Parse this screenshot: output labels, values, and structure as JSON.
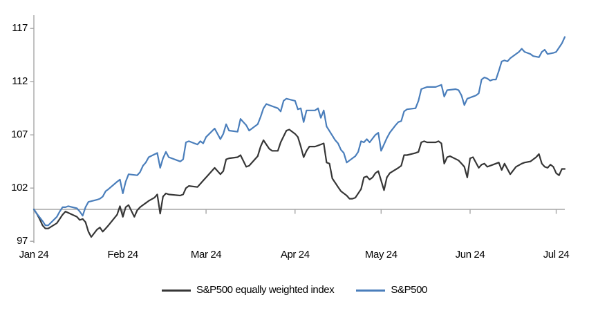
{
  "chart_data": {
    "type": "line",
    "title": "",
    "xlabel": "",
    "ylabel": "",
    "x_axis": {
      "tick_labels": [
        "Jan 24",
        "Feb 24",
        "Mar 24",
        "Apr 24",
        "May 24",
        "Jun 24",
        "Jul 24"
      ],
      "tick_days": [
        0,
        31,
        60,
        91,
        121,
        152,
        182
      ],
      "domain_days": [
        0,
        185
      ]
    },
    "y_axis": {
      "ticks": [
        97,
        102,
        107,
        112,
        117
      ],
      "range": [
        97,
        117
      ],
      "baseline": 100,
      "grid": "baseline-only"
    },
    "legend_position": "bottom",
    "series": [
      {
        "name": "S&P500 equally weighted index",
        "color": "#363636",
        "points": [
          [
            0,
            100.0
          ],
          [
            1,
            99.6
          ],
          [
            2,
            99.1
          ],
          [
            3,
            98.5
          ],
          [
            4,
            98.2
          ],
          [
            5,
            98.2
          ],
          [
            8,
            98.7
          ],
          [
            9,
            99.1
          ],
          [
            10,
            99.5
          ],
          [
            11,
            99.8
          ],
          [
            15,
            99.3
          ],
          [
            16,
            99.0
          ],
          [
            17,
            99.1
          ],
          [
            18,
            98.8
          ],
          [
            19,
            97.9
          ],
          [
            20,
            97.4
          ],
          [
            22,
            98.1
          ],
          [
            23,
            98.3
          ],
          [
            24,
            97.9
          ],
          [
            25,
            98.2
          ],
          [
            26,
            98.5
          ],
          [
            29,
            99.5
          ],
          [
            30,
            100.3
          ],
          [
            31,
            99.3
          ],
          [
            32,
            100.2
          ],
          [
            33,
            100.4
          ],
          [
            35,
            99.3
          ],
          [
            36,
            99.9
          ],
          [
            37,
            100.2
          ],
          [
            38,
            100.4
          ],
          [
            39,
            100.6
          ],
          [
            40,
            100.8
          ],
          [
            42,
            101.1
          ],
          [
            43,
            101.4
          ],
          [
            44,
            99.6
          ],
          [
            45,
            101.2
          ],
          [
            46,
            101.5
          ],
          [
            47,
            101.4
          ],
          [
            51,
            101.3
          ],
          [
            52,
            101.4
          ],
          [
            53,
            102.0
          ],
          [
            54,
            102.2
          ],
          [
            57,
            102.1
          ],
          [
            58,
            102.4
          ],
          [
            59,
            102.7
          ],
          [
            60,
            103.0
          ],
          [
            63,
            103.9
          ],
          [
            65,
            103.3
          ],
          [
            66,
            103.6
          ],
          [
            67,
            104.7
          ],
          [
            68,
            104.8
          ],
          [
            71,
            104.9
          ],
          [
            72,
            105.1
          ],
          [
            74,
            104.0
          ],
          [
            75,
            104.1
          ],
          [
            78,
            105.0
          ],
          [
            79,
            105.9
          ],
          [
            80,
            106.5
          ],
          [
            82,
            105.7
          ],
          [
            83,
            105.5
          ],
          [
            85,
            105.5
          ],
          [
            86,
            106.3
          ],
          [
            88,
            107.4
          ],
          [
            89,
            107.5
          ],
          [
            91,
            107.1
          ],
          [
            92,
            106.8
          ],
          [
            93,
            105.9
          ],
          [
            94,
            104.9
          ],
          [
            95,
            105.5
          ],
          [
            96,
            105.9
          ],
          [
            98,
            105.9
          ],
          [
            99,
            106.0
          ],
          [
            101,
            106.2
          ],
          [
            102,
            104.4
          ],
          [
            103,
            104.3
          ],
          [
            104,
            102.9
          ],
          [
            105,
            102.5
          ],
          [
            106,
            102.1
          ],
          [
            107,
            101.7
          ],
          [
            109,
            101.3
          ],
          [
            110,
            101.0
          ],
          [
            111,
            101.0
          ],
          [
            112,
            101.1
          ],
          [
            114,
            101.9
          ],
          [
            115,
            103.0
          ],
          [
            116,
            103.1
          ],
          [
            117,
            102.8
          ],
          [
            118,
            103.0
          ],
          [
            119,
            103.4
          ],
          [
            120,
            103.6
          ],
          [
            122,
            101.8
          ],
          [
            123,
            103.0
          ],
          [
            124,
            103.4
          ],
          [
            127,
            103.9
          ],
          [
            128,
            104.1
          ],
          [
            129,
            105.1
          ],
          [
            130,
            105.1
          ],
          [
            133,
            105.3
          ],
          [
            134,
            105.4
          ],
          [
            135,
            106.3
          ],
          [
            136,
            106.4
          ],
          [
            137,
            106.3
          ],
          [
            140,
            106.3
          ],
          [
            141,
            106.4
          ],
          [
            142,
            106.2
          ],
          [
            143,
            104.3
          ],
          [
            144,
            104.9
          ],
          [
            145,
            105.0
          ],
          [
            148,
            104.6
          ],
          [
            149,
            104.3
          ],
          [
            150,
            104.0
          ],
          [
            151,
            103.0
          ],
          [
            152,
            104.8
          ],
          [
            153,
            104.9
          ],
          [
            155,
            103.9
          ],
          [
            156,
            104.2
          ],
          [
            157,
            104.3
          ],
          [
            158,
            104.0
          ],
          [
            160,
            104.2
          ],
          [
            162,
            104.4
          ],
          [
            163,
            103.7
          ],
          [
            164,
            104.3
          ],
          [
            166,
            103.3
          ],
          [
            168,
            104.0
          ],
          [
            170,
            104.3
          ],
          [
            171,
            104.4
          ],
          [
            173,
            104.5
          ],
          [
            175,
            104.9
          ],
          [
            176,
            105.2
          ],
          [
            177,
            104.3
          ],
          [
            178,
            104.0
          ],
          [
            179,
            103.9
          ],
          [
            180,
            104.2
          ],
          [
            181,
            104.0
          ],
          [
            182,
            103.4
          ],
          [
            183,
            103.2
          ],
          [
            184,
            103.8
          ],
          [
            185,
            103.8
          ]
        ]
      },
      {
        "name": "S&P500",
        "color": "#4a7ebb",
        "points": [
          [
            0,
            100.0
          ],
          [
            1,
            99.6
          ],
          [
            3,
            98.9
          ],
          [
            4,
            98.5
          ],
          [
            5,
            98.5
          ],
          [
            8,
            99.3
          ],
          [
            9,
            99.8
          ],
          [
            10,
            100.2
          ],
          [
            11,
            100.2
          ],
          [
            12,
            100.3
          ],
          [
            15,
            100.1
          ],
          [
            16,
            99.8
          ],
          [
            17,
            99.4
          ],
          [
            18,
            100.2
          ],
          [
            19,
            100.7
          ],
          [
            22,
            100.9
          ],
          [
            23,
            101.0
          ],
          [
            24,
            101.2
          ],
          [
            25,
            101.7
          ],
          [
            26,
            101.9
          ],
          [
            29,
            102.6
          ],
          [
            30,
            102.8
          ],
          [
            31,
            101.5
          ],
          [
            32,
            102.6
          ],
          [
            33,
            103.3
          ],
          [
            36,
            103.2
          ],
          [
            37,
            103.5
          ],
          [
            38,
            104.1
          ],
          [
            39,
            104.4
          ],
          [
            40,
            104.9
          ],
          [
            43,
            105.3
          ],
          [
            44,
            103.9
          ],
          [
            45,
            104.8
          ],
          [
            46,
            105.4
          ],
          [
            47,
            104.9
          ],
          [
            51,
            104.5
          ],
          [
            52,
            104.7
          ],
          [
            53,
            106.3
          ],
          [
            54,
            106.4
          ],
          [
            57,
            106.1
          ],
          [
            58,
            106.4
          ],
          [
            59,
            106.2
          ],
          [
            60,
            106.8
          ],
          [
            63,
            107.6
          ],
          [
            65,
            106.6
          ],
          [
            66,
            107.1
          ],
          [
            67,
            108.0
          ],
          [
            68,
            107.4
          ],
          [
            71,
            107.3
          ],
          [
            72,
            108.5
          ],
          [
            73,
            108.2
          ],
          [
            74,
            107.9
          ],
          [
            75,
            107.4
          ],
          [
            78,
            108.0
          ],
          [
            79,
            108.7
          ],
          [
            80,
            109.5
          ],
          [
            81,
            109.9
          ],
          [
            82,
            109.8
          ],
          [
            85,
            109.5
          ],
          [
            86,
            109.2
          ],
          [
            87,
            110.2
          ],
          [
            88,
            110.4
          ],
          [
            91,
            110.2
          ],
          [
            92,
            109.4
          ],
          [
            93,
            109.5
          ],
          [
            94,
            108.2
          ],
          [
            95,
            109.3
          ],
          [
            98,
            109.3
          ],
          [
            99,
            109.5
          ],
          [
            100,
            108.6
          ],
          [
            101,
            109.3
          ],
          [
            102,
            107.8
          ],
          [
            105,
            106.5
          ],
          [
            106,
            106.2
          ],
          [
            107,
            105.6
          ],
          [
            108,
            105.3
          ],
          [
            109,
            104.4
          ],
          [
            112,
            105.0
          ],
          [
            113,
            105.4
          ],
          [
            114,
            106.4
          ],
          [
            115,
            106.3
          ],
          [
            116,
            106.6
          ],
          [
            117,
            106.3
          ],
          [
            119,
            107.0
          ],
          [
            120,
            107.2
          ],
          [
            121,
            105.5
          ],
          [
            123,
            106.7
          ],
          [
            124,
            107.2
          ],
          [
            126,
            107.9
          ],
          [
            127,
            108.2
          ],
          [
            128,
            108.3
          ],
          [
            129,
            109.2
          ],
          [
            130,
            109.4
          ],
          [
            133,
            109.5
          ],
          [
            134,
            110.2
          ],
          [
            135,
            111.3
          ],
          [
            136,
            111.4
          ],
          [
            137,
            111.5
          ],
          [
            140,
            111.5
          ],
          [
            141,
            111.6
          ],
          [
            142,
            111.7
          ],
          [
            143,
            110.6
          ],
          [
            144,
            111.2
          ],
          [
            147,
            111.3
          ],
          [
            148,
            111.2
          ],
          [
            149,
            110.7
          ],
          [
            150,
            109.8
          ],
          [
            151,
            110.4
          ],
          [
            154,
            110.7
          ],
          [
            155,
            110.9
          ],
          [
            156,
            112.2
          ],
          [
            157,
            112.4
          ],
          [
            158,
            112.3
          ],
          [
            159,
            112.1
          ],
          [
            160,
            112.2
          ],
          [
            161,
            112.2
          ],
          [
            162,
            113.0
          ],
          [
            163,
            113.9
          ],
          [
            164,
            114.0
          ],
          [
            165,
            113.9
          ],
          [
            166,
            114.2
          ],
          [
            169,
            114.8
          ],
          [
            170,
            115.1
          ],
          [
            171,
            114.8
          ],
          [
            173,
            114.6
          ],
          [
            174,
            114.4
          ],
          [
            176,
            114.3
          ],
          [
            177,
            114.8
          ],
          [
            178,
            115.0
          ],
          [
            179,
            114.6
          ],
          [
            181,
            114.7
          ],
          [
            182,
            114.8
          ],
          [
            184,
            115.6
          ],
          [
            185,
            116.2
          ]
        ]
      }
    ]
  },
  "colors": {
    "axis": "#a6a6a6",
    "text": "#000000"
  },
  "legend": {
    "items": [
      "S&P500 equally weighted index",
      "S&P500"
    ]
  }
}
